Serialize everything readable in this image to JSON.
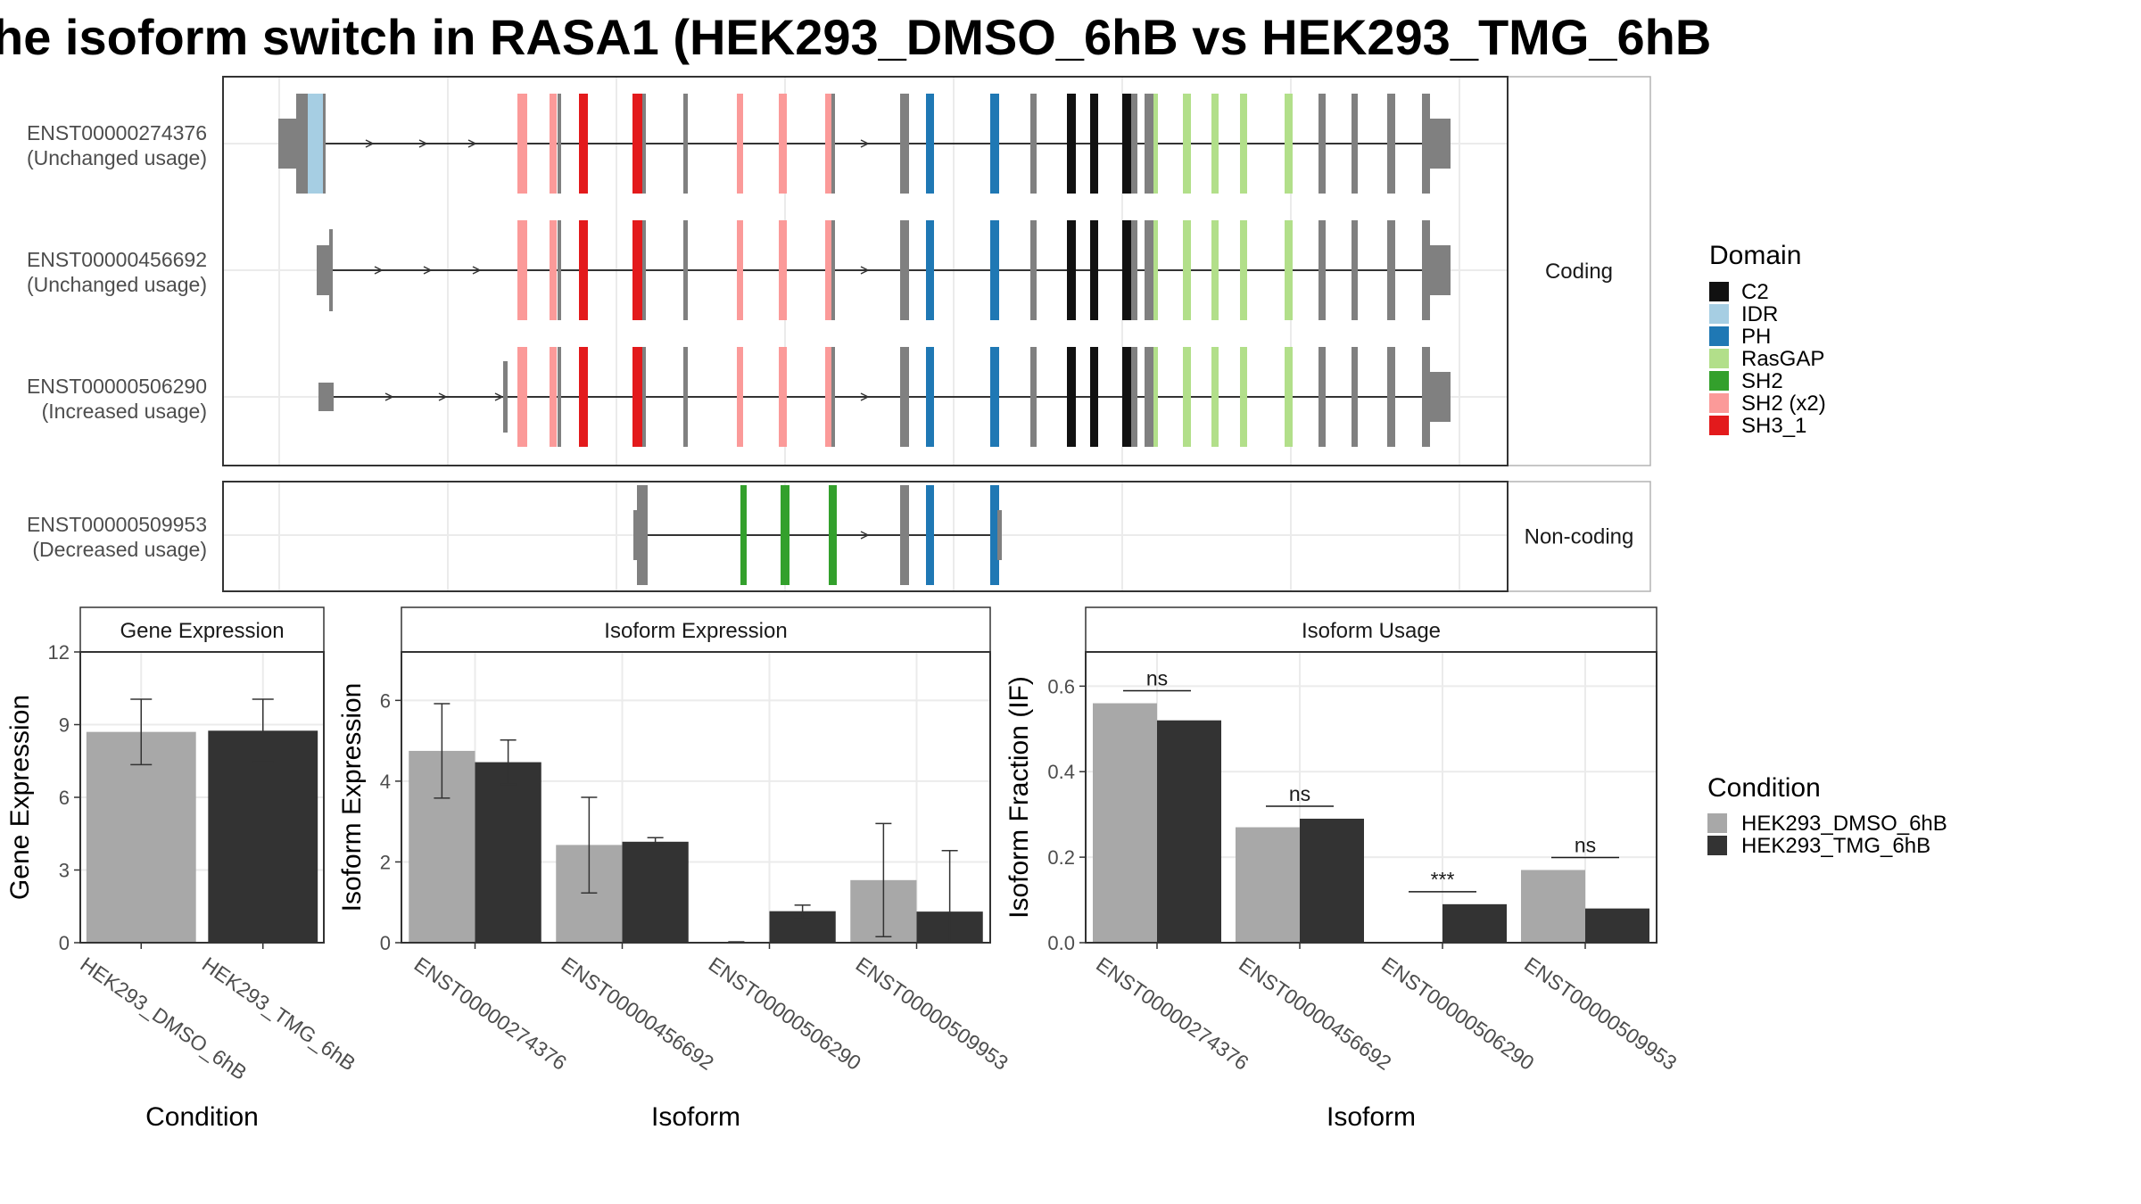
{
  "title": "he isoform switch in RASA1 (HEK293_DMSO_6hB vs HEK293_TMG_6hB",
  "colors": {
    "C2": "#111111",
    "IDR": "#a6cee3",
    "PH": "#1f78b4",
    "RasGAP": "#b2df8a",
    "SH2": "#33a02c",
    "SH2 (x2)": "#fb9a99",
    "SH3_1": "#e31a1c",
    "exon": "#808080",
    "dmso": "#a8a8a8",
    "tmg": "#333333",
    "grid": "#ebebeb",
    "strip_bg": "#ffffff",
    "panel_border": "#333333"
  },
  "structure": {
    "facets": [
      "Coding",
      "Non-coding"
    ],
    "transcripts": [
      {
        "id": "ENST00000274376",
        "usage": "(Unchanged usage)",
        "facet": "Coding"
      },
      {
        "id": "ENST00000456692",
        "usage": "(Unchanged usage)",
        "facet": "Coding"
      },
      {
        "id": "ENST00000506290",
        "usage": "(Increased usage)",
        "facet": "Coding"
      },
      {
        "id": "ENST00000509953",
        "usage": "(Decreased usage)",
        "facet": "Non-coding"
      }
    ]
  },
  "legend_domain": {
    "title": "Domain",
    "items": [
      "C2",
      "IDR",
      "PH",
      "RasGAP",
      "SH2",
      "SH2 (x2)",
      "SH3_1"
    ]
  },
  "legend_condition": {
    "title": "Condition",
    "items": [
      "HEK293_DMSO_6hB",
      "HEK293_TMG_6hB"
    ]
  },
  "chart_data": [
    {
      "type": "bar",
      "title": "Gene Expression",
      "xlabel": "Condition",
      "ylabel": "Gene Expression",
      "ylim": [
        0,
        12
      ],
      "yticks": [
        0,
        3,
        6,
        9,
        12
      ],
      "categories": [
        "HEK293_DMSO_6hB",
        "HEK293_TMG_6hB"
      ],
      "values": [
        8.7,
        8.75
      ],
      "err_low": [
        7.35,
        7.45
      ],
      "err_high": [
        10.05,
        10.05
      ],
      "grid": true
    },
    {
      "type": "bar",
      "title": "Isoform Expression",
      "xlabel": "Isoform",
      "ylabel": "Isoform Expression",
      "ylim": [
        0,
        7.2
      ],
      "yticks": [
        0,
        2,
        4,
        6
      ],
      "categories": [
        "ENST00000274376",
        "ENST00000456692",
        "ENST00000506290",
        "ENST00000509953"
      ],
      "series": [
        {
          "name": "HEK293_DMSO_6hB",
          "values": [
            4.75,
            2.42,
            0.02,
            1.55
          ],
          "err_low": [
            3.58,
            1.23,
            0.02,
            0.15
          ],
          "err_high": [
            5.92,
            3.6,
            0.02,
            2.95
          ]
        },
        {
          "name": "HEK293_TMG_6hB",
          "values": [
            4.47,
            2.5,
            0.78,
            0.77
          ],
          "err_low": [
            3.92,
            2.42,
            0.6,
            0.0
          ],
          "err_high": [
            5.02,
            2.6,
            0.93,
            2.28
          ]
        }
      ],
      "grid": true
    },
    {
      "type": "bar",
      "title": "Isoform Usage",
      "xlabel": "Isoform",
      "ylabel": "Isoform Fraction (IF)",
      "ylim": [
        0,
        0.68
      ],
      "yticks": [
        "0.0",
        "0.2",
        "0.4",
        "0.6"
      ],
      "categories": [
        "ENST00000274376",
        "ENST00000456692",
        "ENST00000506290",
        "ENST00000509953"
      ],
      "series": [
        {
          "name": "HEK293_DMSO_6hB",
          "values": [
            0.56,
            0.27,
            0.0,
            0.17
          ]
        },
        {
          "name": "HEK293_TMG_6hB",
          "values": [
            0.52,
            0.29,
            0.09,
            0.08
          ]
        }
      ],
      "significance": [
        "ns",
        "ns",
        "***",
        "ns"
      ],
      "grid": true
    }
  ]
}
